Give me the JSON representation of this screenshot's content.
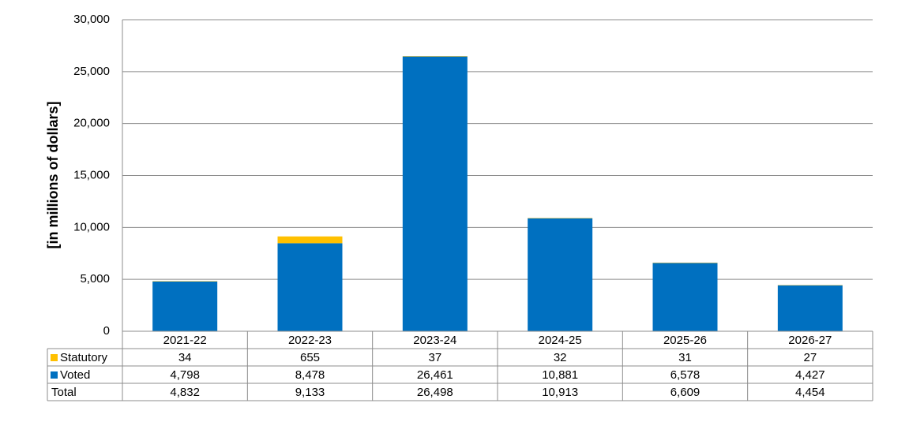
{
  "chart_data": {
    "type": "stacked_bar",
    "y_label": "[in millions of dollars]",
    "categories": [
      "2021-22",
      "2022-23",
      "2023-24",
      "2024-25",
      "2025-26",
      "2026-27"
    ],
    "series": [
      {
        "name": "Statutory",
        "color": "#ffc000",
        "values": [
          34,
          655,
          37,
          32,
          31,
          27
        ],
        "value_labels": [
          "34",
          "655",
          "37",
          "32",
          "31",
          "27"
        ]
      },
      {
        "name": "Voted",
        "color": "#0070c0",
        "values": [
          4798,
          8478,
          26461,
          10881,
          6578,
          4427
        ],
        "value_labels": [
          "4,798",
          "8,478",
          "26,461",
          "10,881",
          "6,578",
          "4,427"
        ]
      }
    ],
    "totals": {
      "name": "Total",
      "values": [
        4832,
        9133,
        26498,
        10913,
        6609,
        4454
      ],
      "value_labels": [
        "4,832",
        "9,133",
        "26,498",
        "10,913",
        "6,609",
        "4,454"
      ]
    },
    "ylim": [
      0,
      30000
    ],
    "yticks": [
      0,
      {
        "value": 5000,
        "label": "5,000"
      },
      {
        "value": 10000,
        "label": "10,000"
      },
      {
        "value": 15000,
        "label": "15,000"
      },
      {
        "value": 20000,
        "label": "20,000"
      },
      {
        "value": 25000,
        "label": "25,000"
      },
      {
        "value": 30000,
        "label": "30,000"
      }
    ],
    "grid": true
  }
}
